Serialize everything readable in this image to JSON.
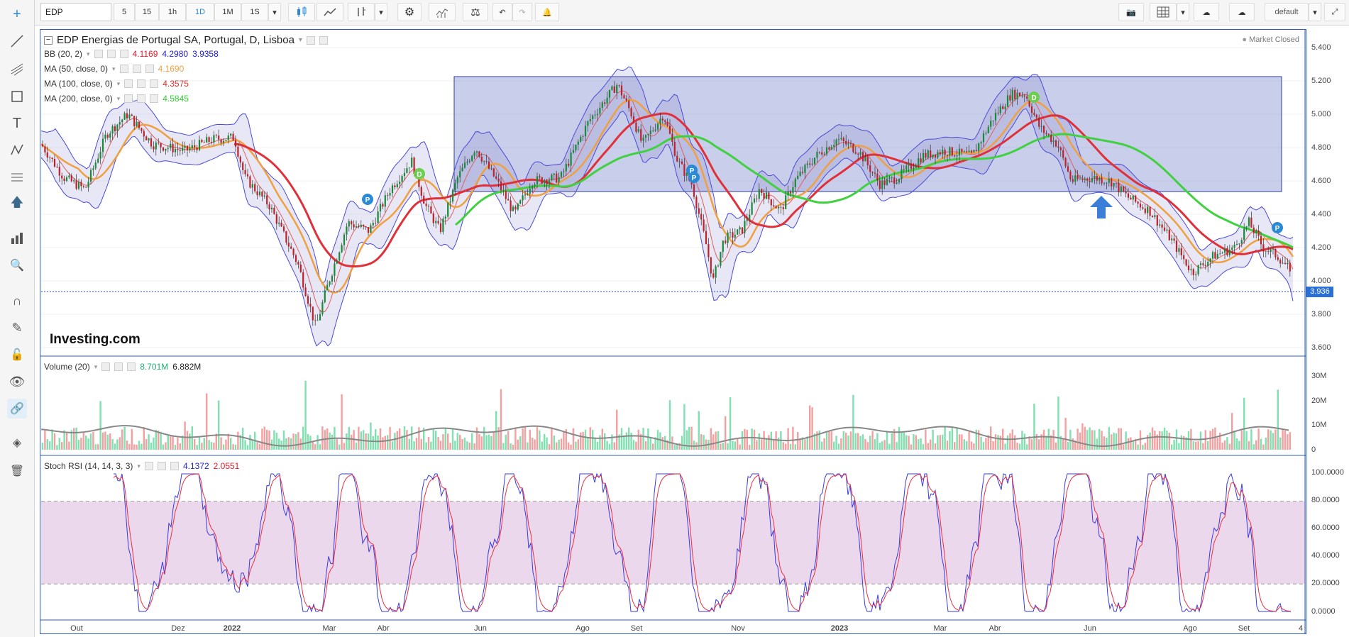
{
  "toolbar": {
    "symbol": "EDP",
    "intervals": [
      "5",
      "15",
      "1h",
      "1D",
      "1M",
      "1S"
    ],
    "active_interval": "1D",
    "layout_name": "default"
  },
  "chart": {
    "title": "EDP Energias de Portugal SA, Portugal, D, Lisboa",
    "status": "Market Closed",
    "logo": "Investing.com",
    "last_price_tag": "3.936",
    "price_axis": [
      "5.400",
      "5.200",
      "5.000",
      "4.800",
      "4.600",
      "4.400",
      "4.200",
      "4.000",
      "3.800",
      "3.600"
    ],
    "volume_axis": [
      "30M",
      "20M",
      "10M",
      "0"
    ],
    "rsi_axis": [
      "100.0000",
      "80.0000",
      "60.0000",
      "40.0000",
      "20.0000",
      "0.0000"
    ],
    "date_axis": [
      "Out",
      "Dez",
      "2022",
      "Mar",
      "Abr",
      "Jun",
      "Ago",
      "Set",
      "Nov",
      "2023",
      "Mar",
      "Abr",
      "Jun",
      "Ago",
      "Set",
      "4"
    ],
    "markers": {
      "dividend": "D",
      "split": "P"
    }
  },
  "indicators": {
    "bb": {
      "label": "BB (20, 2)",
      "v1": "4.1169",
      "v2": "4.2980",
      "v3": "3.9358",
      "c1": "#e8182a",
      "c2": "#2020d0",
      "c3": "#2020d0"
    },
    "ma50": {
      "label": "MA (50, close, 0)",
      "value": "4.1690",
      "color": "#f0a040"
    },
    "ma100": {
      "label": "MA (100, close, 0)",
      "value": "4.3575",
      "color": "#e0302a"
    },
    "ma200": {
      "label": "MA (200, close, 0)",
      "value": "4.5845",
      "color": "#30d030"
    },
    "volume": {
      "label": "Volume (20)",
      "v1": "8.701M",
      "v2": "6.882M",
      "c1": "#20b070",
      "c2": "#222222"
    },
    "stoch": {
      "label": "Stoch RSI (14, 14, 3, 3)",
      "v1": "4.1372",
      "v2": "2.0551",
      "c1": "#2020d0",
      "c2": "#e8182a"
    }
  }
}
